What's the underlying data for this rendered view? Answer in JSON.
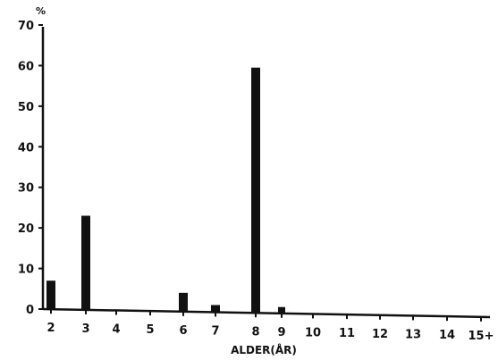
{
  "chart_data": {
    "type": "bar",
    "title": "",
    "ylabel": "%",
    "xlabel": "ALDER(ÅR)",
    "ylim": [
      0,
      70
    ],
    "y_ticks": [
      "0",
      "10",
      "20",
      "30",
      "40",
      "50",
      "60",
      "70"
    ],
    "categories": [
      "2",
      "3",
      "4",
      "5",
      "6",
      "7",
      "8",
      "9",
      "10",
      "11",
      "12",
      "13",
      "14",
      "15+"
    ],
    "values": [
      7,
      23,
      0,
      0,
      4,
      1,
      59.5,
      0.5,
      0,
      0,
      0,
      0,
      0,
      0
    ],
    "grid": false,
    "bar_color": "#111111"
  }
}
